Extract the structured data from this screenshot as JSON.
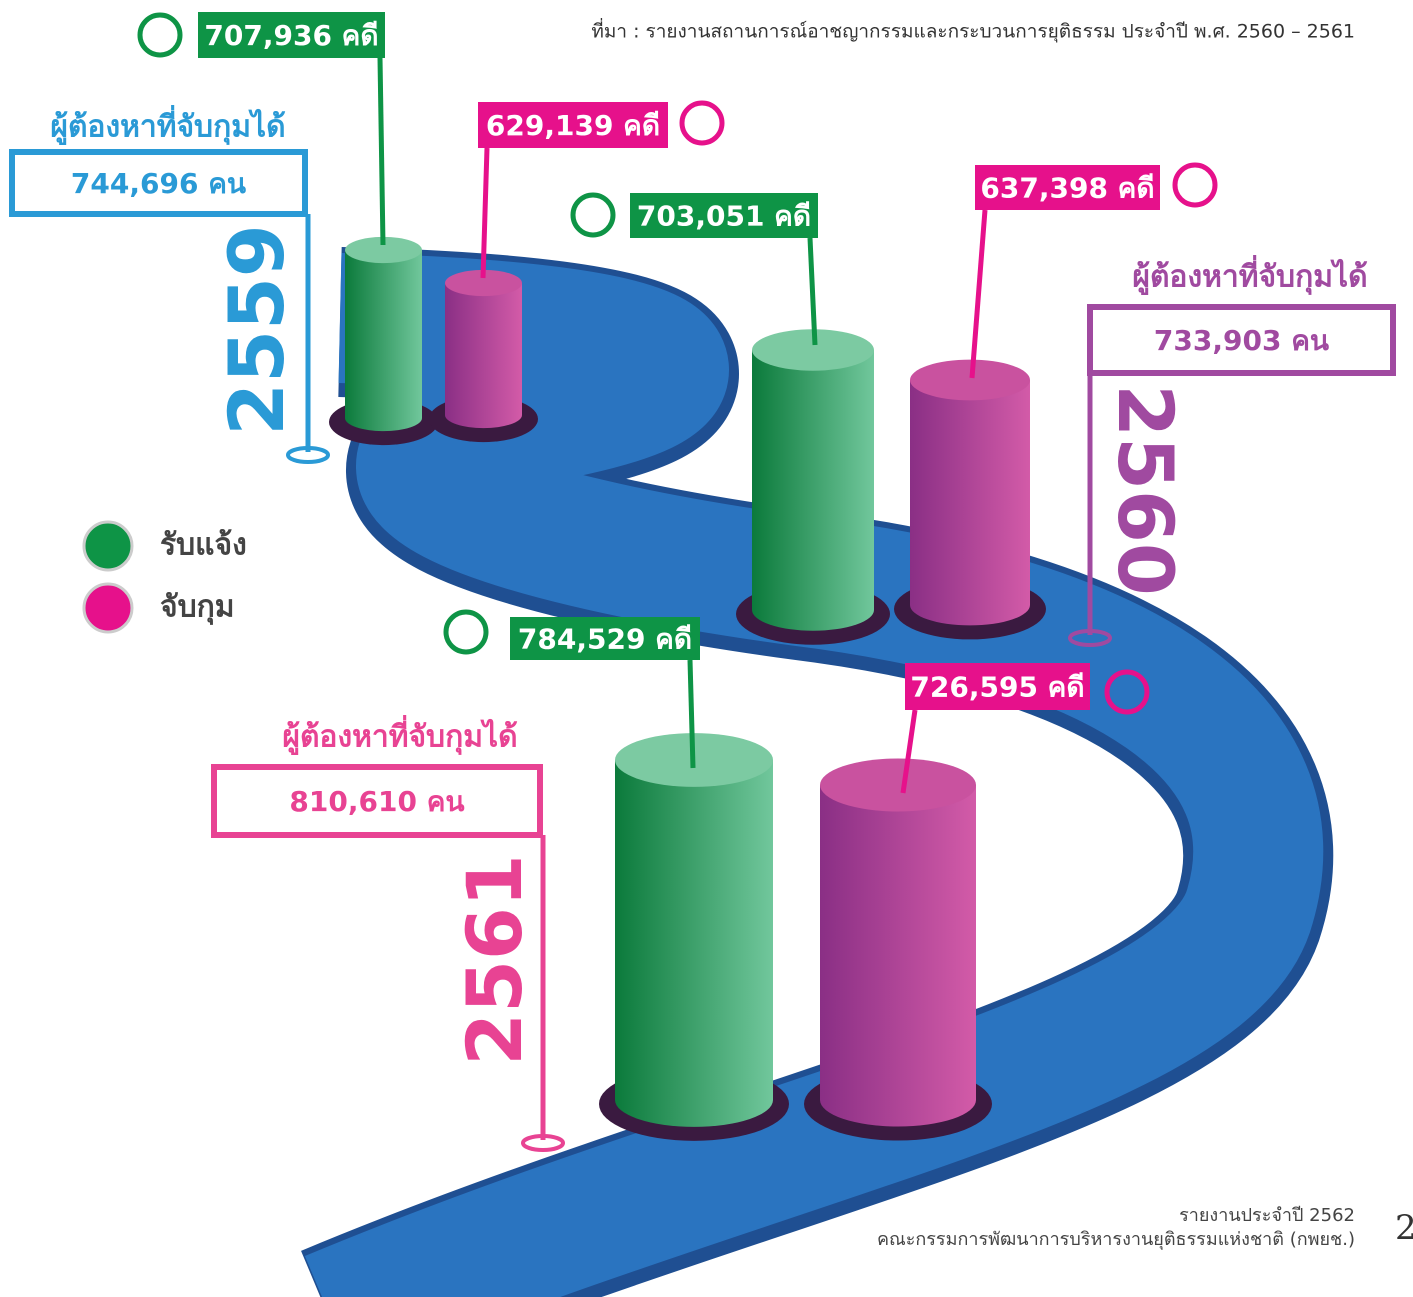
{
  "source": "ที่มา : รายงานสถานการณ์อาชญากรรมและกระบวนการยุติธรรม ประจำปี พ.ศ. 2560 – 2561",
  "legend": [
    {
      "label": "รับแจ้ง"
    },
    {
      "label": "จับกุม"
    }
  ],
  "years": [
    {
      "year": "2559",
      "reported": "707,936 คดี",
      "arrested": "629,139 คดี",
      "suspects_title": "ผู้ต้องหาที่จับกุมได้",
      "suspects": "744,696 คน"
    },
    {
      "year": "2560",
      "reported": "703,051 คดี",
      "arrested": "637,398 คดี",
      "suspects_title": "ผู้ต้องหาที่จับกุมได้",
      "suspects": "733,903 คน"
    },
    {
      "year": "2561",
      "reported": "784,529 คดี",
      "arrested": "726,595 คดี",
      "suspects_title": "ผู้ต้องหาที่จับกุมได้",
      "suspects": "810,610 คน"
    }
  ],
  "footer": {
    "line1": "รายงานประจำปี 2562",
    "line2": "คณะกรรมการพัฒนาการบริหารงานยุติธรรมแห่งชาติ (กพยช.)",
    "page": "2"
  }
}
